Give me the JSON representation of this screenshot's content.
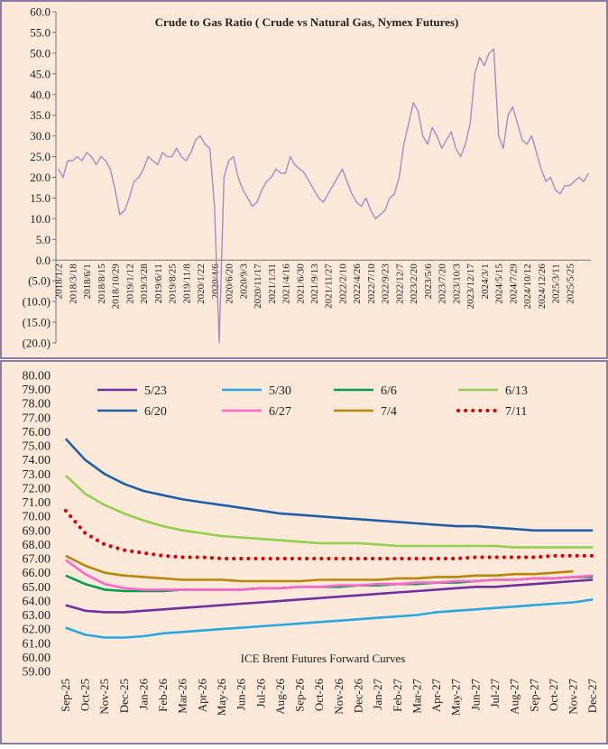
{
  "chart_data": [
    {
      "type": "line",
      "title": "Crude to Gas Ratio ( Crude vs Natural Gas, Nymex Futures)",
      "categories": [
        "2018/1/2",
        null,
        null,
        "2018/3/18",
        null,
        null,
        "2018/6/1",
        null,
        null,
        "2018/8/15",
        null,
        null,
        "2018/10/29",
        null,
        null,
        "2019/1/12",
        null,
        null,
        "2019/3/28",
        null,
        null,
        "2019/6/11",
        null,
        null,
        "2019/8/25",
        null,
        null,
        "2019/11/8",
        null,
        null,
        "2020/1/22",
        null,
        null,
        "2020/4/6",
        null,
        null,
        "2020/6/20",
        null,
        null,
        "2020/9/3",
        null,
        null,
        "2020/11/17",
        null,
        null,
        "2021/1/31",
        null,
        null,
        "2021/4/16",
        null,
        null,
        "2021/6/30",
        null,
        null,
        "2021/9/13",
        null,
        null,
        "2021/11/27",
        null,
        null,
        "2022/2/10",
        null,
        null,
        "2022/4/26",
        null,
        null,
        "2022/7/10",
        null,
        null,
        "2022/9/23",
        null,
        null,
        "2022/12/7",
        null,
        null,
        "2023/2/20",
        null,
        null,
        "2023/5/6",
        null,
        null,
        "2023/7/20",
        null,
        null,
        "2023/10/3",
        null,
        null,
        "2023/12/17",
        null,
        null,
        "2024/3/1",
        null,
        null,
        "2024/5/15",
        null,
        null,
        "2024/7/29",
        null,
        null,
        "2024/10/12",
        null,
        null,
        "2024/12/26",
        null,
        null,
        "2025/3/11",
        null,
        null,
        "2025/5/25",
        null,
        null,
        null,
        null
      ],
      "series": [
        {
          "name": "Crude to Gas Ratio",
          "color": "#a58bc9",
          "values": [
            22,
            20,
            24,
            24,
            25,
            24,
            26,
            25,
            23,
            25,
            24,
            22,
            17,
            11,
            12,
            15,
            19,
            20,
            22,
            25,
            24,
            23,
            26,
            25,
            25,
            27,
            25,
            24,
            26,
            29,
            30,
            28,
            27,
            13,
            -20,
            20,
            24,
            25,
            20,
            17,
            15,
            13,
            14,
            17,
            19,
            20,
            22,
            21,
            21,
            25,
            23,
            22,
            21,
            19,
            17,
            15,
            14,
            16,
            18,
            20,
            22,
            19,
            16,
            14,
            13,
            15,
            12,
            10,
            11,
            12,
            15,
            16,
            20,
            28,
            33,
            38,
            36,
            30,
            28,
            32,
            30,
            27,
            29,
            31,
            27,
            25,
            28,
            33,
            45,
            49,
            47,
            50,
            51,
            30,
            27,
            35,
            37,
            33,
            29,
            28,
            30,
            26,
            22,
            19,
            20,
            17,
            16,
            18,
            18,
            19,
            20,
            19,
            21
          ]
        }
      ],
      "ylim": [
        -20,
        60
      ],
      "yticks": [
        {
          "value": 60,
          "label": "60.0"
        },
        {
          "value": 55,
          "label": "55.0"
        },
        {
          "value": 50,
          "label": "50.0"
        },
        {
          "value": 45,
          "label": "45.0"
        },
        {
          "value": 40,
          "label": "40.0"
        },
        {
          "value": 35,
          "label": "35.0"
        },
        {
          "value": 30,
          "label": "30.0"
        },
        {
          "value": 25,
          "label": "25.0"
        },
        {
          "value": 20,
          "label": "20.0"
        },
        {
          "value": 15,
          "label": "15.0"
        },
        {
          "value": 10,
          "label": "10.0"
        },
        {
          "value": 5,
          "label": "5.0"
        },
        {
          "value": 0,
          "label": "0.0"
        },
        {
          "value": -5,
          "label": "(5.0)"
        },
        {
          "value": -10,
          "label": "(10.0)"
        },
        {
          "value": -15,
          "label": "(15.0)"
        },
        {
          "value": -20,
          "label": "(20.0)"
        }
      ],
      "negative_tick_color": "#c00000",
      "grid": false
    },
    {
      "type": "line",
      "title": "ICE Brent Futures Forward Curves",
      "categories": [
        "Sep-25",
        "Oct-25",
        "Nov-25",
        "Dec-25",
        "Jan-26",
        "Feb-26",
        "Mar-26",
        "Apr-26",
        "May-26",
        "Jun-26",
        "Jul-26",
        "Aug-26",
        "Sep-26",
        "Oct-26",
        "Nov-26",
        "Dec-26",
        "Jan-27",
        "Feb-27",
        "Mar-27",
        "Apr-27",
        "May-27",
        "Jun-27",
        "Jul-27",
        "Aug-27",
        "Sep-27",
        "Oct-27",
        "Nov-27",
        "Dec-27"
      ],
      "series": [
        {
          "name": "5/23",
          "color": "#7030a0",
          "values": [
            63.7,
            63.3,
            63.2,
            63.2,
            63.3,
            63.4,
            63.5,
            63.6,
            63.7,
            63.8,
            63.9,
            64.0,
            64.1,
            64.2,
            64.3,
            64.4,
            64.5,
            64.6,
            64.7,
            64.8,
            64.9,
            65.0,
            65.0,
            65.1,
            65.2,
            65.3,
            65.4,
            65.5
          ]
        },
        {
          "name": "5/30",
          "color": "#28a8e0",
          "values": [
            62.1,
            61.6,
            61.4,
            61.4,
            61.5,
            61.7,
            61.8,
            61.9,
            62.0,
            62.1,
            62.2,
            62.3,
            62.4,
            62.5,
            62.6,
            62.7,
            62.8,
            62.9,
            63.0,
            63.2,
            63.3,
            63.4,
            63.5,
            63.6,
            63.7,
            63.8,
            63.9,
            64.1
          ]
        },
        {
          "name": "6/6",
          "color": "#00a050",
          "values": [
            65.8,
            65.2,
            64.8,
            64.7,
            64.7,
            64.7,
            64.8,
            64.8,
            64.8,
            64.8,
            64.9,
            64.9,
            65.0,
            65.0,
            65.0,
            65.1,
            65.1,
            65.2,
            65.2,
            65.3,
            65.3,
            65.4,
            65.5,
            65.5,
            65.6,
            65.6,
            65.7,
            65.7
          ]
        },
        {
          "name": "6/13",
          "color": "#92d050",
          "values": [
            72.9,
            71.6,
            70.8,
            70.2,
            69.7,
            69.3,
            69.0,
            68.8,
            68.6,
            68.5,
            68.4,
            68.3,
            68.2,
            68.1,
            68.1,
            68.1,
            68.0,
            67.9,
            67.9,
            67.9,
            67.9,
            67.9,
            67.9,
            67.8,
            67.8,
            67.8,
            67.8,
            67.8
          ]
        },
        {
          "name": "6/20",
          "color": "#1f5fa8",
          "values": [
            75.5,
            74.0,
            73.0,
            72.3,
            71.8,
            71.5,
            71.2,
            71.0,
            70.8,
            70.6,
            70.4,
            70.2,
            70.1,
            70.0,
            69.9,
            69.8,
            69.7,
            69.6,
            69.5,
            69.4,
            69.3,
            69.3,
            69.2,
            69.1,
            69.0,
            69.0,
            69.0,
            69.0
          ]
        },
        {
          "name": "6/27",
          "color": "#ff66cc",
          "values": [
            66.9,
            65.9,
            65.2,
            64.9,
            64.8,
            64.8,
            64.8,
            64.8,
            64.8,
            64.8,
            64.9,
            64.9,
            65.0,
            65.0,
            65.1,
            65.1,
            65.2,
            65.2,
            65.3,
            65.3,
            65.4,
            65.4,
            65.5,
            65.5,
            65.6,
            65.6,
            65.7,
            65.8
          ]
        },
        {
          "name": "7/4",
          "color": "#b8860b",
          "values": [
            67.2,
            66.5,
            66.0,
            65.8,
            65.7,
            65.6,
            65.5,
            65.5,
            65.5,
            65.4,
            65.4,
            65.4,
            65.4,
            65.5,
            65.5,
            65.5,
            65.5,
            65.6,
            65.6,
            65.7,
            65.7,
            65.8,
            65.8,
            65.9,
            65.9,
            66.0,
            66.1,
            null
          ]
        },
        {
          "name": "7/11",
          "color": "#e00000",
          "dash": "dotted",
          "values": [
            70.4,
            68.8,
            68.0,
            67.6,
            67.4,
            67.2,
            67.1,
            67.1,
            67.0,
            67.0,
            67.0,
            67.0,
            67.0,
            67.0,
            67.0,
            67.0,
            67.0,
            67.0,
            67.0,
            67.0,
            67.0,
            67.1,
            67.1,
            67.1,
            67.1,
            67.2,
            67.2,
            67.2
          ]
        }
      ],
      "ylim": [
        59,
        80
      ],
      "yticks": [
        {
          "value": 80,
          "label": "80.00"
        },
        {
          "value": 79,
          "label": "79.00"
        },
        {
          "value": 78,
          "label": "78.00"
        },
        {
          "value": 77,
          "label": "77.00"
        },
        {
          "value": 76,
          "label": "76.00"
        },
        {
          "value": 75,
          "label": "75.00"
        },
        {
          "value": 74,
          "label": "74.00"
        },
        {
          "value": 73,
          "label": "73.00"
        },
        {
          "value": 72,
          "label": "72.00"
        },
        {
          "value": 71,
          "label": "71.00"
        },
        {
          "value": 70,
          "label": "70.00"
        },
        {
          "value": 69,
          "label": "69.00"
        },
        {
          "value": 68,
          "label": "68.00"
        },
        {
          "value": 67,
          "label": "67.00"
        },
        {
          "value": 66,
          "label": "66.00"
        },
        {
          "value": 65,
          "label": "65.00"
        },
        {
          "value": 64,
          "label": "64.00"
        },
        {
          "value": 63,
          "label": "63.00"
        },
        {
          "value": 62,
          "label": "62.00"
        },
        {
          "value": 61,
          "label": "61.00"
        },
        {
          "value": 60,
          "label": "60.00"
        },
        {
          "value": 59,
          "label": "59.00"
        }
      ],
      "legend": "top",
      "grid": false
    }
  ]
}
